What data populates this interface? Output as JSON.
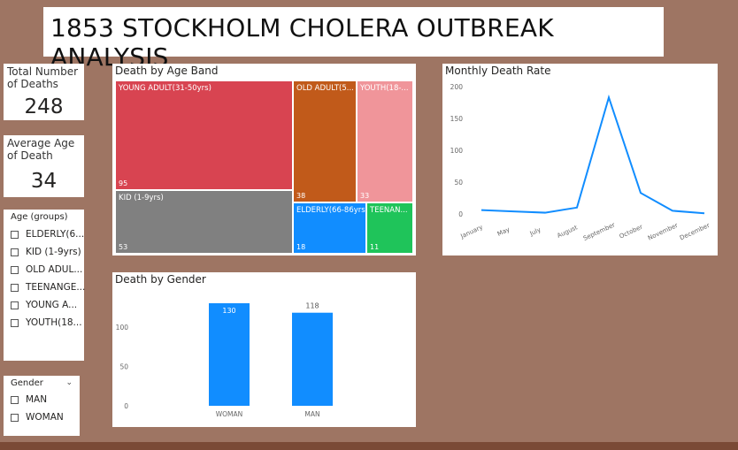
{
  "report_title": "1853 STOCKHOLM CHOLERA OUTBREAK ANALYSIS",
  "kpis": {
    "total_deaths": {
      "label": "Total Number of Deaths",
      "value": "248"
    },
    "avg_age": {
      "label": "Average Age of Death",
      "value": "34"
    }
  },
  "age_slicer": {
    "title": "Age (groups)",
    "items": [
      "ELDERLY(6...",
      "KID (1-9yrs)",
      "OLD ADUL...",
      "TEENANGE...",
      "YOUNG A...",
      "YOUTH(18..."
    ]
  },
  "gender_slicer": {
    "title": "Gender",
    "items": [
      "MAN",
      "WOMAN"
    ]
  },
  "colors": {
    "background": "#9e7563",
    "young_adult": "#d84451",
    "old_adult": "#c15a1a",
    "youth": "#f0959a",
    "kid": "#808080",
    "elderly": "#118dff",
    "teen": "#1fc45a",
    "bar": "#118dff",
    "line": "#118dff"
  },
  "treemap": {
    "title": "Death by Age Band",
    "cells": [
      {
        "label": "YOUNG ADULT(31-50yrs)",
        "value": "95",
        "color": "#d84451"
      },
      {
        "label": "KID (1-9yrs)",
        "value": "53",
        "color": "#808080"
      },
      {
        "label": "OLD ADULT(5...",
        "value": "38",
        "color": "#c15a1a"
      },
      {
        "label": "YOUTH(18-...",
        "value": "33",
        "color": "#f0959a"
      },
      {
        "label": "ELDERLY(66-86yrs)",
        "value": "18",
        "color": "#118dff"
      },
      {
        "label": "TEENAN...",
        "value": "11",
        "color": "#1fc45a"
      }
    ]
  },
  "chart_data": [
    {
      "type": "line",
      "title": "Monthly Death Rate",
      "x": [
        "January",
        "May",
        "July",
        "August",
        "September",
        "October",
        "November",
        "December"
      ],
      "series": [
        {
          "values": [
            6,
            4,
            2,
            10,
            183,
            33,
            5,
            1
          ]
        }
      ],
      "yticks": [
        "0",
        "50",
        "100",
        "150",
        "200"
      ],
      "ylim": [
        0,
        200
      ],
      "grid": false
    },
    {
      "type": "bar",
      "title": "Death by Gender",
      "categories": [
        "WOMAN",
        "MAN"
      ],
      "values": [
        130,
        118
      ],
      "data_labels": [
        "130",
        "118"
      ],
      "yticks": [
        "0",
        "50",
        "100"
      ],
      "ylim": [
        0,
        140
      ],
      "grid": false
    }
  ]
}
